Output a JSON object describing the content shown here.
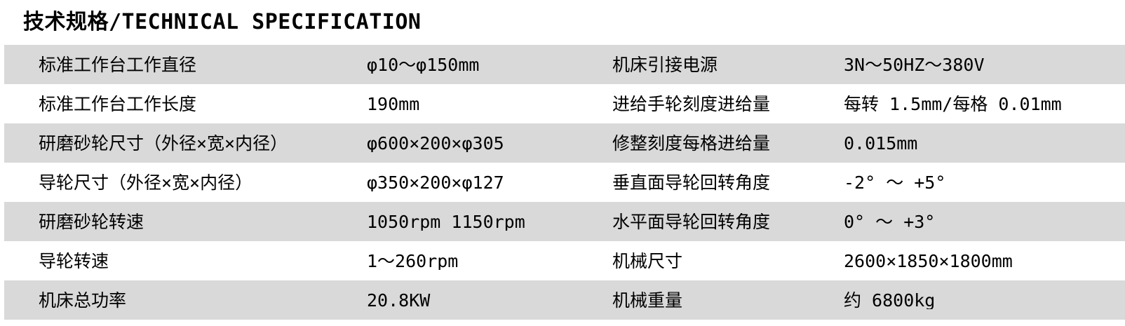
{
  "page": {
    "title": "技术规格/TECHNICAL SPECIFICATION"
  },
  "colors": {
    "row_alt_bg": "#d9d9d9",
    "row_bg": "#ffffff",
    "text": "#000000"
  },
  "table": {
    "rows": [
      {
        "label_left": "标准工作台工作直径",
        "value_left": "φ10～φ150mm",
        "label_right": "机床引接电源",
        "value_right": "3N～50HZ～380V"
      },
      {
        "label_left": "标准工作台工作长度",
        "value_left": "190mm",
        "label_right": "进给手轮刻度进给量",
        "value_right": "每转 1.5mm/每格 0.01mm"
      },
      {
        "label_left": "研磨砂轮尺寸（外径×宽×内径）",
        "value_left": "φ600×200×φ305",
        "label_right": "修整刻度每格进给量",
        "value_right": "0.015mm"
      },
      {
        "label_left": "导轮尺寸（外径×宽×内径）",
        "value_left": "φ350×200×φ127",
        "label_right": "垂直面导轮回转角度",
        "value_right": "-2° ～ +5°"
      },
      {
        "label_left": "研磨砂轮转速",
        "value_left": "1050rpm 1150rpm",
        "label_right": "水平面导轮回转角度",
        "value_right": "0° ～ +3°"
      },
      {
        "label_left": "导轮转速",
        "value_left": "1～260rpm",
        "label_right": "机械尺寸",
        "value_right": "2600×1850×1800mm"
      },
      {
        "label_left": "机床总功率",
        "value_left": "20.8KW",
        "label_right": "机械重量",
        "value_right": "约 6800kg"
      }
    ]
  }
}
